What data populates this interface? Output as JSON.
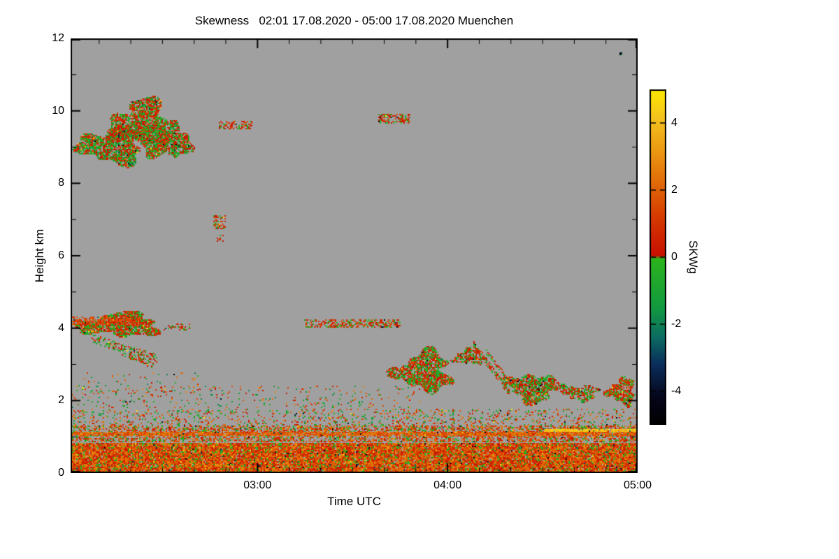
{
  "page": {
    "background": "#ffffff"
  },
  "chart_data": {
    "type": "heatmap",
    "title": "Skewness   02:01 17.08.2020 - 05:00 17.08.2020 Muenchen",
    "xlabel": "Time UTC",
    "ylabel": "Height km",
    "x_range_hours": [
      2.0167,
      5.0
    ],
    "x_ticks": [
      {
        "value": 3,
        "label": "03:00"
      },
      {
        "value": 4,
        "label": "04:00"
      },
      {
        "value": 5,
        "label": "05:00"
      }
    ],
    "x_minor_step_hours": 0.166667,
    "y_range_km": [
      0,
      12
    ],
    "y_ticks": [
      {
        "value": 0,
        "label": "0"
      },
      {
        "value": 2,
        "label": "2"
      },
      {
        "value": 4,
        "label": "4"
      },
      {
        "value": 6,
        "label": "6"
      },
      {
        "value": 8,
        "label": "8"
      },
      {
        "value": 10,
        "label": "10"
      },
      {
        "value": 12,
        "label": "12"
      }
    ],
    "y_minor_step_km": 1,
    "no_data_color": "#a0a0a0",
    "outlier_fraction": 0.06,
    "colorbar": {
      "label": "SKWg",
      "range": [
        -5,
        5
      ],
      "ticks": [
        {
          "value": 4,
          "label": "4"
        },
        {
          "value": 2,
          "label": "2"
        },
        {
          "value": 0,
          "label": "0"
        },
        {
          "value": -2,
          "label": "-2"
        },
        {
          "value": -4,
          "label": "-4"
        }
      ],
      "stops": [
        {
          "value": -5.0,
          "color": "#000000"
        },
        {
          "value": -4.2,
          "color": "#05051a"
        },
        {
          "value": -3.2,
          "color": "#0a2e5c"
        },
        {
          "value": -2.4,
          "color": "#0c6b62"
        },
        {
          "value": -1.5,
          "color": "#129a40"
        },
        {
          "value": -0.05,
          "color": "#2cb31c"
        },
        {
          "value": 0.05,
          "color": "#c80f00"
        },
        {
          "value": 1.2,
          "color": "#d63a00"
        },
        {
          "value": 2.2,
          "color": "#e06a08"
        },
        {
          "value": 3.2,
          "color": "#eb9a12"
        },
        {
          "value": 4.2,
          "color": "#f4c41e"
        },
        {
          "value": 5.0,
          "color": "#fce800"
        }
      ]
    },
    "features": [
      {
        "name": "cirrus-0205-0240-a",
        "shape": "blob",
        "t0": 2.017,
        "t1": 2.45,
        "h0": 8.45,
        "h1": 9.65,
        "density": 0.88,
        "mean": -0.1,
        "spread": 1.3,
        "seed": 11
      },
      {
        "name": "cirrus-0205-0240-b",
        "shape": "blob",
        "t0": 2.2,
        "t1": 2.58,
        "h0": 8.9,
        "h1": 10.45,
        "density": 0.85,
        "mean": 0.1,
        "spread": 1.3,
        "seed": 12
      },
      {
        "name": "cirrus-0205-0240-c",
        "shape": "blob",
        "t0": 2.38,
        "t1": 2.68,
        "h0": 8.6,
        "h1": 9.75,
        "density": 0.82,
        "mean": 0.0,
        "spread": 1.25,
        "seed": 13
      },
      {
        "name": "streak-0248-9.6km",
        "shape": "rect",
        "t0": 2.79,
        "t1": 2.97,
        "h0": 9.5,
        "h1": 9.75,
        "density": 0.55,
        "mean": 0.5,
        "spread": 1.2,
        "seed": 14
      },
      {
        "name": "streak-0340-9.8km",
        "shape": "rect",
        "t0": 3.63,
        "t1": 3.8,
        "h0": 9.65,
        "h1": 9.95,
        "density": 0.6,
        "mean": 0.5,
        "spread": 1.2,
        "seed": 15
      },
      {
        "name": "dots-0247-7km",
        "shape": "rect",
        "t0": 2.76,
        "t1": 2.83,
        "h0": 6.75,
        "h1": 7.15,
        "density": 0.5,
        "mean": 0.6,
        "spread": 1.1,
        "seed": 16
      },
      {
        "name": "dot-0248-6.5km",
        "shape": "rect",
        "t0": 2.78,
        "t1": 2.82,
        "h0": 6.4,
        "h1": 6.6,
        "density": 0.4,
        "mean": 0.4,
        "spread": 1.0,
        "seed": 17
      },
      {
        "name": "layer-4km-main",
        "shape": "blob",
        "t0": 2.017,
        "t1": 2.52,
        "h0": 3.72,
        "h1": 4.5,
        "density": 0.87,
        "mean": 0.2,
        "spread": 1.3,
        "seed": 18
      },
      {
        "name": "layer-4km-red-top",
        "shape": "rect",
        "t0": 2.02,
        "t1": 2.38,
        "h0": 4.1,
        "h1": 4.35,
        "density": 0.65,
        "mean": 1.3,
        "spread": 0.8,
        "seed": 19
      },
      {
        "name": "layer-4km-tail",
        "shape": "rect",
        "t0": 2.5,
        "t1": 2.64,
        "h0": 3.95,
        "h1": 4.15,
        "density": 0.4,
        "mean": 0.3,
        "spread": 1.0,
        "seed": 20
      },
      {
        "name": "wisp-under-4km",
        "shape": "diag",
        "t0": 2.12,
        "t1": 2.48,
        "hs": 3.75,
        "he": 3.15,
        "thick": 0.25,
        "density": 0.45,
        "mean": 0.0,
        "spread": 1.0,
        "seed": 21
      },
      {
        "name": "wisp-3km",
        "shape": "diag",
        "t0": 2.28,
        "t1": 2.46,
        "hs": 3.35,
        "he": 2.95,
        "thick": 0.16,
        "density": 0.35,
        "mean": 0.2,
        "spread": 1.0,
        "seed": 22
      },
      {
        "name": "streak-0315-4.1km",
        "shape": "rect",
        "t0": 3.24,
        "t1": 3.75,
        "h0": 4.05,
        "h1": 4.28,
        "density": 0.5,
        "mean": 0.5,
        "spread": 1.1,
        "seed": 23
      },
      {
        "name": "cloud-0345-0400",
        "shape": "blob",
        "t0": 3.7,
        "t1": 4.05,
        "h0": 2.15,
        "h1": 3.5,
        "density": 0.86,
        "mean": 0.1,
        "spread": 1.25,
        "seed": 24
      },
      {
        "name": "patch-0403-3.2km",
        "shape": "blob",
        "t0": 4.02,
        "t1": 4.2,
        "h0": 2.95,
        "h1": 3.5,
        "density": 0.72,
        "mean": 0.2,
        "spread": 1.1,
        "seed": 25
      },
      {
        "name": "fallstreak-0410-a",
        "shape": "diag",
        "t0": 4.13,
        "t1": 4.32,
        "hs": 3.6,
        "he": 2.25,
        "thick": 0.2,
        "density": 0.6,
        "mean": 0.3,
        "spread": 1.0,
        "seed": 26
      },
      {
        "name": "fallstreak-0410-b",
        "shape": "diag",
        "t0": 4.19,
        "t1": 4.37,
        "hs": 3.45,
        "he": 2.2,
        "thick": 0.14,
        "density": 0.5,
        "mean": 0.1,
        "spread": 1.0,
        "seed": 27
      },
      {
        "name": "cloud-0420-0435",
        "shape": "blob",
        "t0": 4.28,
        "t1": 4.62,
        "h0": 1.9,
        "h1": 2.85,
        "density": 0.85,
        "mean": 0.1,
        "spread": 1.25,
        "seed": 28
      },
      {
        "name": "patch-0442",
        "shape": "blob",
        "t0": 4.6,
        "t1": 4.8,
        "h0": 1.95,
        "h1": 2.5,
        "density": 0.75,
        "mean": 0.2,
        "spread": 1.1,
        "seed": 29
      },
      {
        "name": "cloud-0455",
        "shape": "blob",
        "t0": 4.82,
        "t1": 5.0,
        "h0": 1.85,
        "h1": 2.7,
        "density": 0.85,
        "mean": 0.3,
        "spread": 1.2,
        "seed": 30
      },
      {
        "name": "boundary-layer-core",
        "shape": "band",
        "t0": 2.017,
        "t1": 5.0,
        "h0": 0.0,
        "h1": 0.85,
        "density": 0.96,
        "mean": 1.3,
        "spread": 1.7,
        "seed": 31
      },
      {
        "name": "boundary-layer-top",
        "shape": "band",
        "t0": 2.017,
        "t1": 5.0,
        "h0": 0.85,
        "h1": 1.35,
        "density": 0.55,
        "mean": 1.0,
        "spread": 1.8,
        "seed": 32
      },
      {
        "name": "boundary-layer-sparse",
        "shape": "band",
        "t0": 2.017,
        "t1": 5.0,
        "h0": 1.35,
        "h1": 1.8,
        "density": 0.18,
        "mean": 0.6,
        "spread": 2.2,
        "seed": 33
      },
      {
        "name": "speckle-1.8-2.4km",
        "shape": "band",
        "t0": 2.017,
        "t1": 3.85,
        "h0": 1.8,
        "h1": 2.45,
        "density": 0.07,
        "mean": 0.5,
        "spread": 2.5,
        "seed": 34
      },
      {
        "name": "speckle-left-2.2-2.8km",
        "shape": "band",
        "t0": 2.05,
        "t1": 2.7,
        "h0": 2.2,
        "h1": 2.8,
        "density": 0.05,
        "mean": 0.3,
        "spread": 2.5,
        "seed": 35
      },
      {
        "name": "line-1.1km",
        "shape": "band",
        "t0": 2.017,
        "t1": 5.0,
        "h0": 1.05,
        "h1": 1.16,
        "density": 0.85,
        "mean": 2.0,
        "spread": 0.9,
        "seed": 36
      },
      {
        "name": "yellow-line-0435-05",
        "shape": "band",
        "t0": 4.5,
        "t1": 5.0,
        "h0": 1.17,
        "h1": 1.24,
        "density": 0.9,
        "mean": 4.2,
        "spread": 0.6,
        "seed": 37
      },
      {
        "name": "dot-0455-11.6km",
        "shape": "rect",
        "t0": 4.9,
        "t1": 4.915,
        "h0": 11.55,
        "h1": 11.65,
        "density": 0.8,
        "mean": -4.5,
        "spread": 0.5,
        "seed": 38
      }
    ]
  }
}
